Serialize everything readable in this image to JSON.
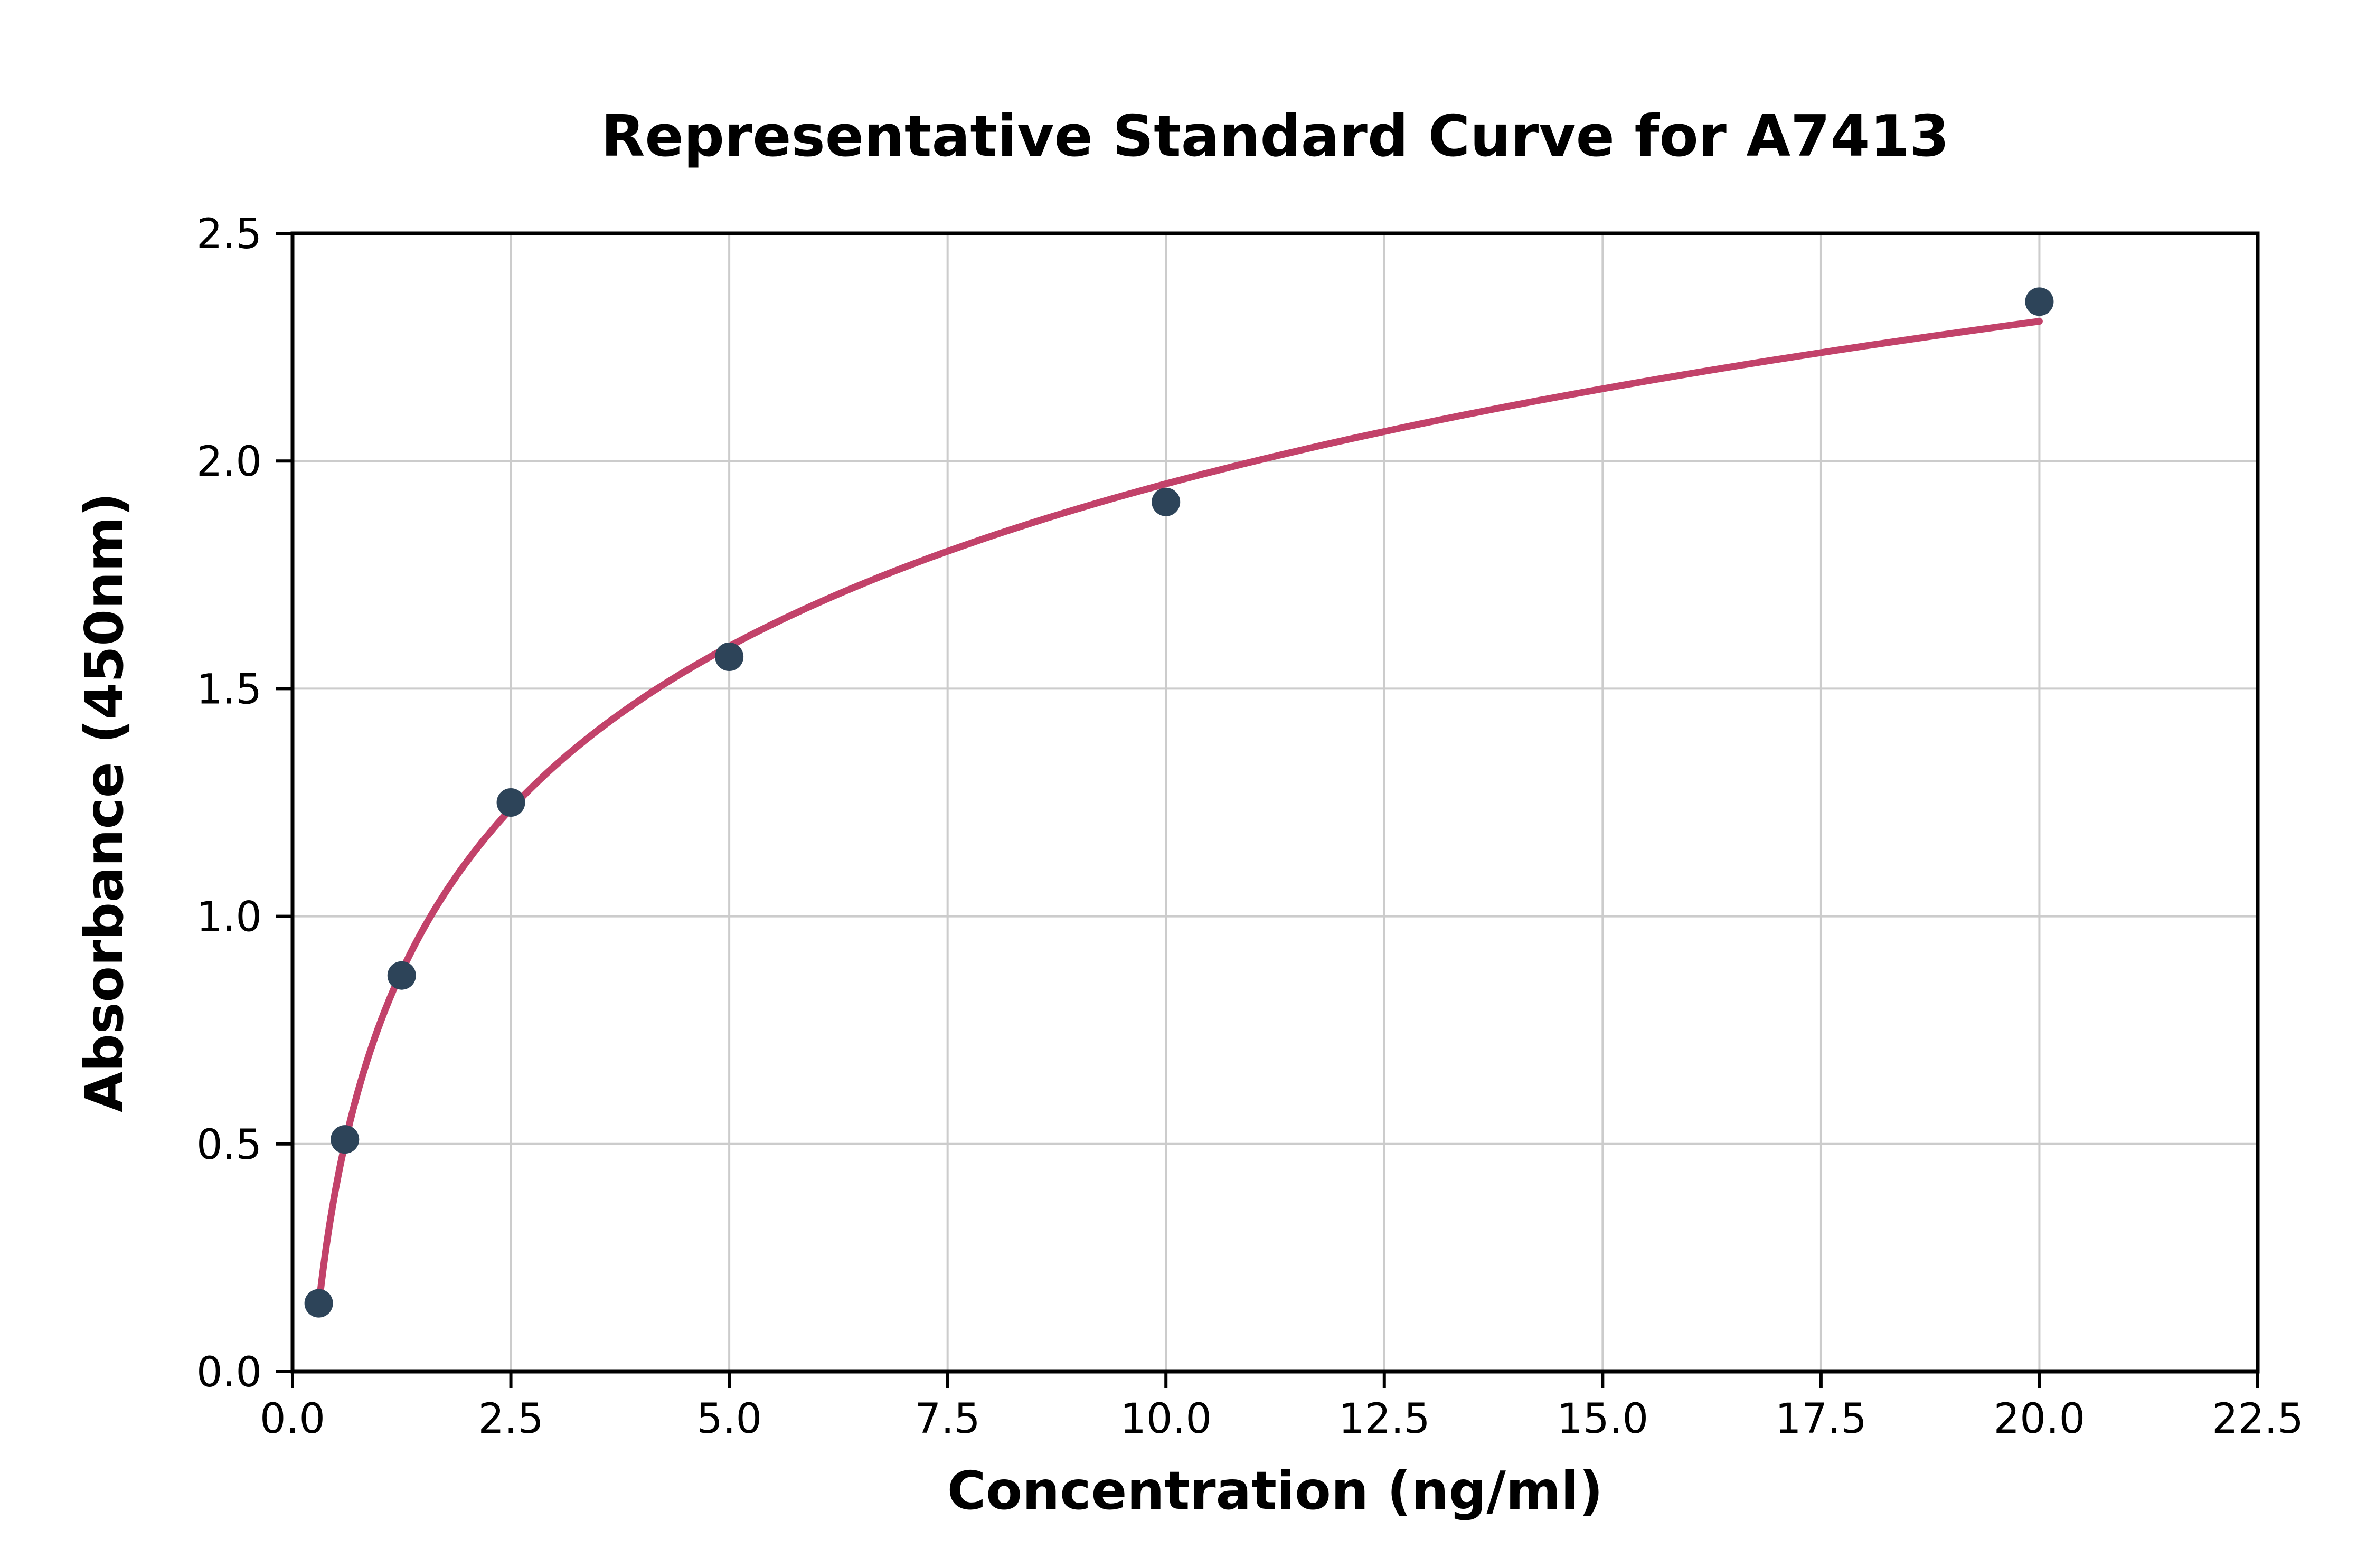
{
  "chart_data": {
    "type": "scatter",
    "title": "Representative Standard Curve for A7413",
    "xlabel": "Concentration (ng/ml)",
    "ylabel": "Absorbance (450nm)",
    "xlim": [
      0,
      22.5
    ],
    "ylim": [
      0,
      2.5
    ],
    "x_ticks": [
      0.0,
      2.5,
      5.0,
      7.5,
      10.0,
      12.5,
      15.0,
      17.5,
      20.0,
      22.5
    ],
    "x_tick_labels": [
      "0.0",
      "2.5",
      "5.0",
      "7.5",
      "10.0",
      "12.5",
      "15.0",
      "17.5",
      "20.0",
      "22.5"
    ],
    "y_ticks": [
      0.0,
      0.5,
      1.0,
      1.5,
      2.0,
      2.5
    ],
    "y_tick_labels": [
      "0.0",
      "0.5",
      "1.0",
      "1.5",
      "2.0",
      "2.5"
    ],
    "grid": true,
    "legend": "none",
    "points": {
      "x": [
        0.3,
        0.6,
        1.25,
        2.5,
        5,
        10,
        20
      ],
      "y": [
        0.15,
        0.51,
        0.87,
        1.25,
        1.57,
        1.91,
        2.35
      ]
    },
    "curve_fit": "logarithmic",
    "point_color": "#2d4459",
    "curve_color": "#c2426a",
    "grid_color": "#cccccc",
    "axis_color": "#000000",
    "background_color": "#ffffff"
  }
}
